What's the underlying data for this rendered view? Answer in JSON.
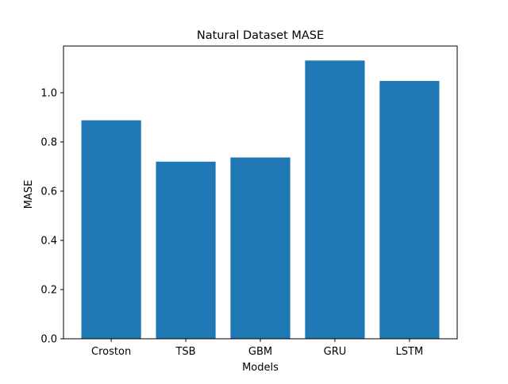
{
  "chart_data": {
    "type": "bar",
    "title": "Natural Dataset MASE",
    "xlabel": "Models",
    "ylabel": "MASE",
    "categories": [
      "Croston",
      "TSB",
      "GBM",
      "GRU",
      "LSTM"
    ],
    "values": [
      0.888,
      0.72,
      0.737,
      1.131,
      1.048
    ],
    "ylim": [
      0,
      1.19
    ],
    "yticks": [
      0.0,
      0.2,
      0.4,
      0.6,
      0.8,
      1.0
    ],
    "ytick_labels": [
      "0.0",
      "0.2",
      "0.4",
      "0.6",
      "0.8",
      "1.0"
    ],
    "bar_color": "#1f77b4",
    "grid": false,
    "legend": "none"
  }
}
